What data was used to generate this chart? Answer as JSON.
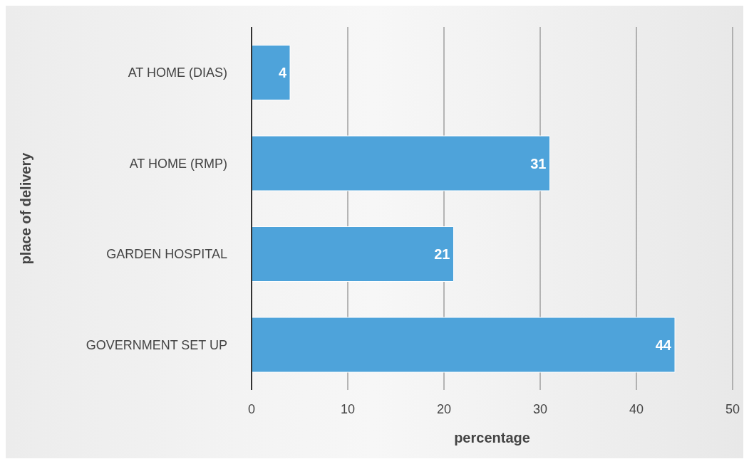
{
  "chart_data": {
    "type": "bar",
    "orientation": "horizontal",
    "xlabel": "percentage",
    "ylabel": "place of delivery",
    "categories": [
      "AT HOME (DIAS)",
      "AT HOME (RMP)",
      "GARDEN HOSPITAL",
      "GOVERNMENT SET UP"
    ],
    "values": [
      4,
      31,
      21,
      44
    ],
    "color": "#4ea3da",
    "xlim": [
      0,
      50
    ],
    "xticks": [
      0,
      10,
      20,
      30,
      40,
      50
    ],
    "grid": "x",
    "data_labels": true
  }
}
